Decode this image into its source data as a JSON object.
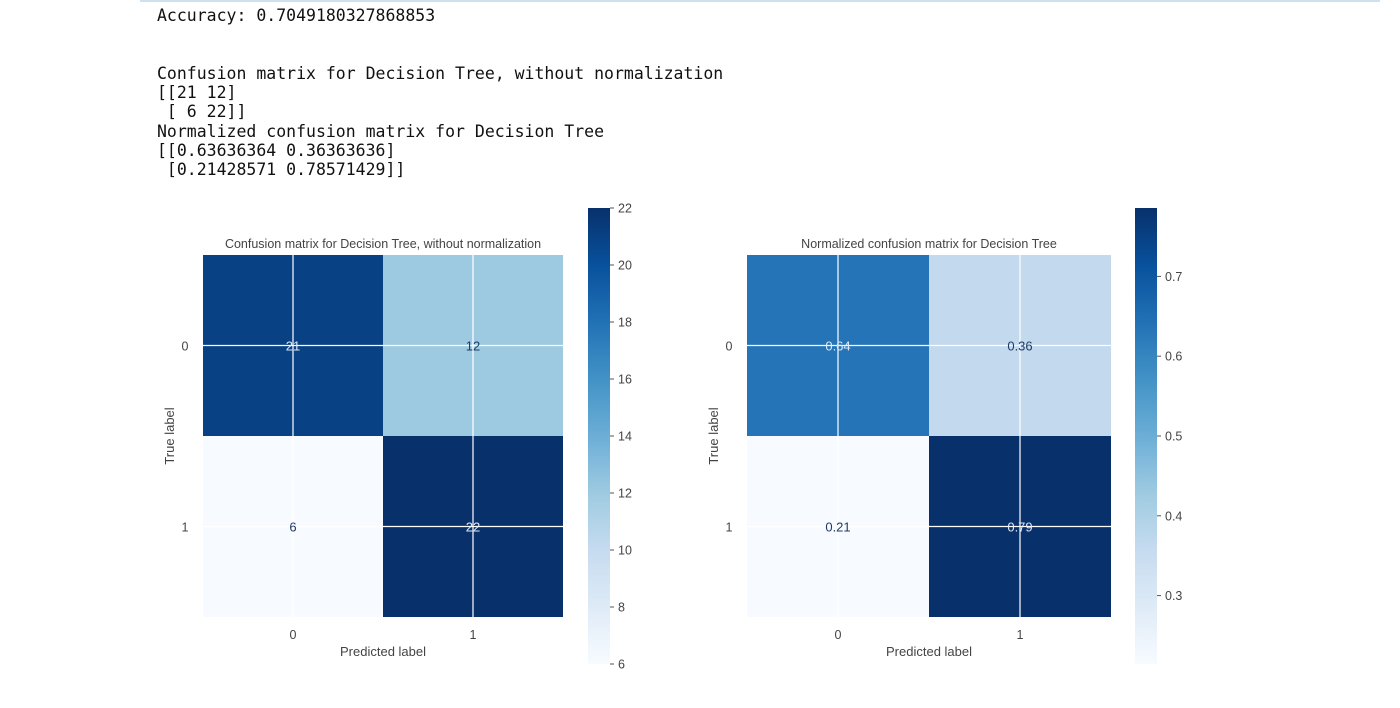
{
  "console": {
    "lines": [
      "Accuracy: 0.7049180327868853",
      "",
      "",
      "Confusion matrix for Decision Tree, without normalization",
      "[[21 12]",
      " [ 6 22]]",
      "Normalized confusion matrix for Decision Tree",
      "[[0.63636364 0.36363636]",
      " [0.21428571 0.78571429]]"
    ]
  },
  "colors": {
    "cmap": "Blues",
    "text_dark": "#1f3a66",
    "text_light": "#ffffff",
    "axis_text": "#444444"
  },
  "chart_data": [
    {
      "type": "heatmap",
      "title": "Confusion matrix for Decision Tree, without normalization",
      "xlabel": "Predicted label",
      "ylabel": "True label",
      "x_ticks": [
        "0",
        "1"
      ],
      "y_ticks": [
        "0",
        "1"
      ],
      "values": [
        [
          21,
          12
        ],
        [
          6,
          22
        ]
      ],
      "cell_labels": [
        [
          "21",
          "12"
        ],
        [
          "6",
          "22"
        ]
      ],
      "vmin": 6,
      "vmax": 22,
      "colorbar_ticks": [
        6,
        8,
        10,
        12,
        14,
        16,
        18,
        20,
        22
      ],
      "colorbar_tick_labels": [
        "6",
        "8",
        "10",
        "12",
        "14",
        "16",
        "18",
        "20",
        "22"
      ],
      "colormap": "Blues",
      "grid": true
    },
    {
      "type": "heatmap",
      "title": "Normalized confusion matrix for Decision Tree",
      "xlabel": "Predicted label",
      "ylabel": "True label",
      "x_ticks": [
        "0",
        "1"
      ],
      "y_ticks": [
        "0",
        "1"
      ],
      "values": [
        [
          0.63636364,
          0.36363636
        ],
        [
          0.21428571,
          0.78571429
        ]
      ],
      "cell_labels": [
        [
          "0.64",
          "0.36"
        ],
        [
          "0.21",
          "0.79"
        ]
      ],
      "vmin": 0.21428571,
      "vmax": 0.78571429,
      "colorbar_ticks": [
        0.3,
        0.4,
        0.5,
        0.6,
        0.7
      ],
      "colorbar_tick_labels": [
        "0.3",
        "0.4",
        "0.5",
        "0.6",
        "0.7"
      ],
      "colormap": "Blues",
      "grid": true
    }
  ]
}
